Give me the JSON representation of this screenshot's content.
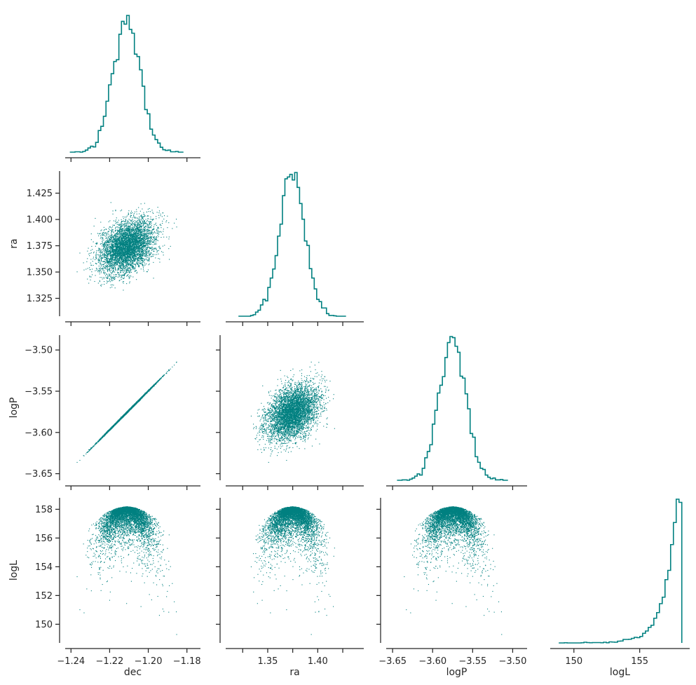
{
  "figure_type": "corner plot (pair plot, lower triangle)",
  "colors": {
    "series": "#008080",
    "axis": "#262626",
    "background": "#ffffff"
  },
  "variables": [
    "dec",
    "ra",
    "logP",
    "logL"
  ],
  "chart_data": {
    "type": "scatter",
    "n_samples_approx": 5000,
    "axes": {
      "dec": {
        "label": "dec",
        "lim": [
          -1.243,
          -1.173
        ],
        "ticks": [
          -1.24,
          -1.22,
          -1.2,
          -1.18
        ],
        "tick_labels": [
          "−1.24",
          "−1.22",
          "−1.20",
          "−1.18"
        ]
      },
      "ra": {
        "label": "ra",
        "lim": [
          1.308,
          1.446
        ],
        "ticks": [
          1.325,
          1.35,
          1.375,
          1.4,
          1.425
        ],
        "tick_labels": [
          "1.325",
          "1.350",
          "1.375",
          "1.400",
          "1.425"
        ],
        "tick_labels_x": [
          "",
          "1.35",
          "",
          "1.40",
          ""
        ]
      },
      "logP": {
        "label": "logP",
        "lim": [
          -3.658,
          -3.482
        ],
        "ticks": [
          -3.65,
          -3.6,
          -3.55,
          -3.5
        ],
        "tick_labels": [
          "−3.65",
          "−3.60",
          "−3.55",
          "−3.50"
        ]
      },
      "logL": {
        "label": "logL",
        "lim": [
          148.7,
          158.8
        ],
        "ticks": [
          150,
          152,
          154,
          156,
          158
        ],
        "tick_labels": [
          "150",
          "152",
          "154",
          "156",
          "158"
        ],
        "x_ticks": [
          150,
          155
        ],
        "x_tick_labels": [
          "150",
          "155"
        ],
        "x_lim": [
          148.2,
          158.8
        ]
      }
    },
    "marginals": {
      "dec": {
        "mean": -1.2112,
        "std": 0.007,
        "bins": 44
      },
      "ra": {
        "mean": 1.3745,
        "std": 0.0128,
        "bins": 44
      },
      "logP": {
        "mean": -3.5752,
        "std": 0.0165,
        "bins": 44
      },
      "logL": {
        "peak": 158.2,
        "min": 148.9,
        "bins": 44,
        "shape": "left-skewed, sharp cutoff at peak"
      }
    },
    "relations": {
      "logP_vs_dec": "linear, logP = -3.5752 + 2.357*(dec + 1.2112)",
      "ra_vs_dec": "weak positive correlation",
      "logL_vs_each": "parabolic envelope, maximum 158.2 at the mean"
    }
  }
}
